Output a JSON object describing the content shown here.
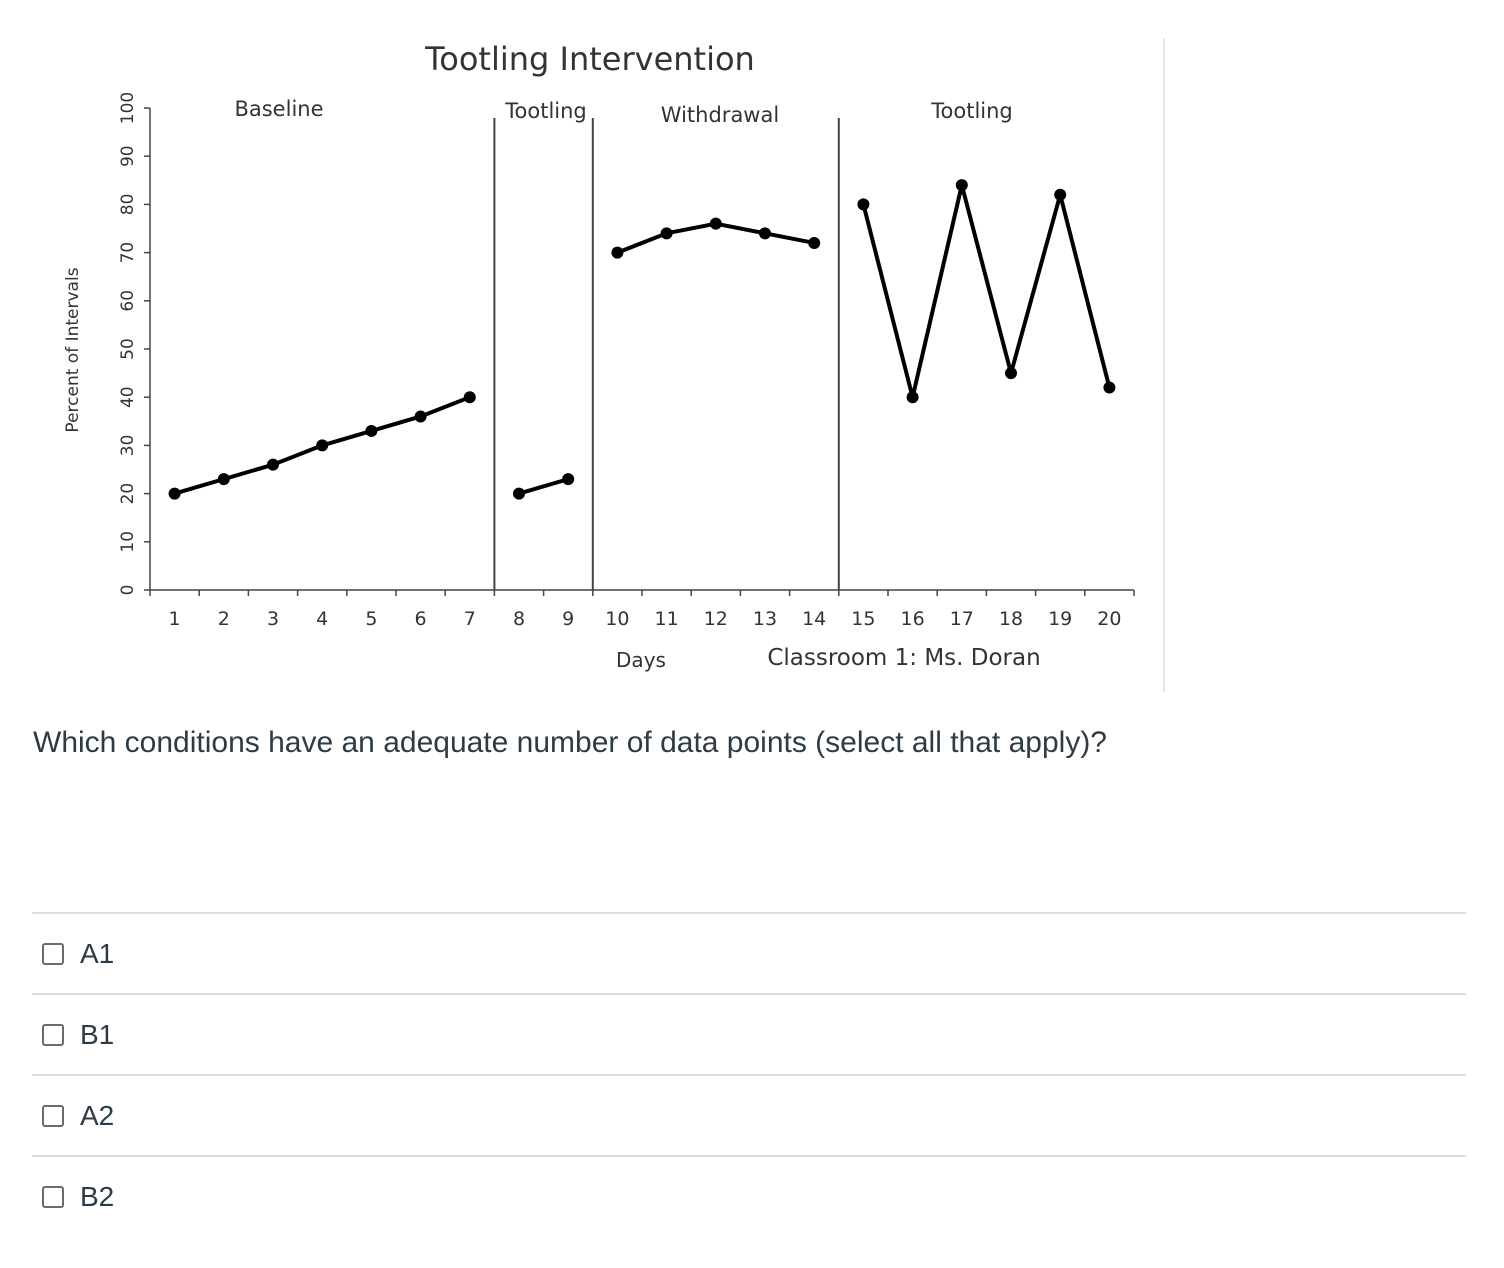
{
  "chart_data": {
    "type": "line",
    "title": "Tootling Intervention",
    "ylabel": "Percent of Intervals",
    "xlabel": "Days",
    "subtitle": "Classroom 1: Ms. Doran",
    "ylim": [
      0,
      100
    ],
    "xlim": [
      1,
      20
    ],
    "yticks": [
      0,
      10,
      20,
      30,
      40,
      50,
      60,
      70,
      80,
      90,
      100
    ],
    "xticks": [
      1,
      2,
      3,
      4,
      5,
      6,
      7,
      8,
      9,
      10,
      11,
      12,
      13,
      14,
      15,
      16,
      17,
      18,
      19,
      20
    ],
    "phases": [
      {
        "label": "Baseline",
        "x": [
          1,
          2,
          3,
          4,
          5,
          6,
          7
        ],
        "y": [
          20,
          23,
          26,
          30,
          33,
          36,
          40
        ]
      },
      {
        "label": "Tootling",
        "x": [
          8,
          9
        ],
        "y": [
          20,
          23
        ]
      },
      {
        "label": "Withdrawal",
        "x": [
          10,
          11,
          12,
          13,
          14
        ],
        "y": [
          70,
          74,
          76,
          74,
          72
        ]
      },
      {
        "label": "Tootling",
        "x": [
          15,
          16,
          17,
          18,
          19,
          20
        ],
        "y": [
          80,
          40,
          84,
          45,
          82,
          42
        ]
      }
    ],
    "phase_change_lines": [
      7.5,
      9.5,
      14.5
    ]
  },
  "question": {
    "text": "Which conditions have an adequate number of data points (select all that apply)?"
  },
  "answers": [
    {
      "label": "A1"
    },
    {
      "label": "B1"
    },
    {
      "label": "A2"
    },
    {
      "label": "B2"
    }
  ]
}
